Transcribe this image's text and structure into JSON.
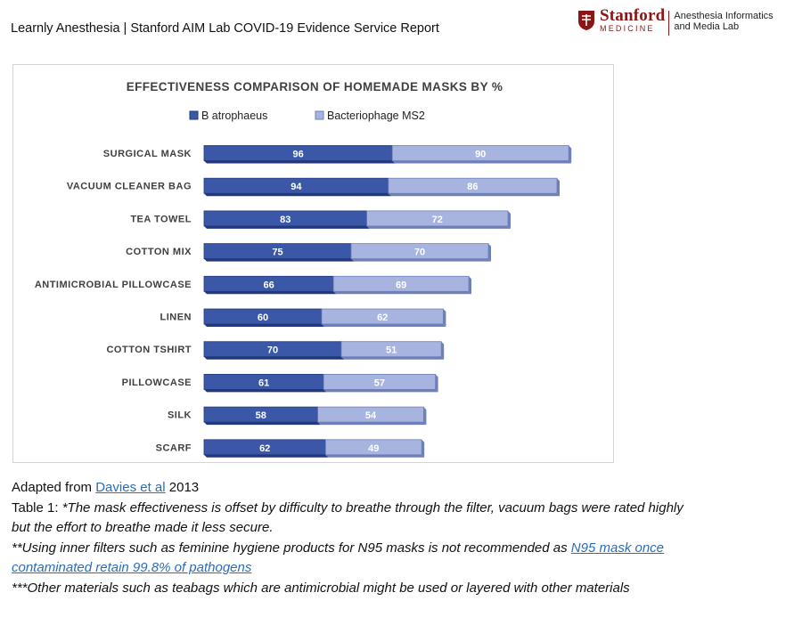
{
  "header": {
    "title": "Learnly  Anesthesia | Stanford AIM Lab COVID-19 Evidence Service Report"
  },
  "logo": {
    "wordmark": "Stanford",
    "subword": "MEDICINE",
    "lab_line1": "Anesthesia Informatics",
    "lab_line2": "and Media Lab"
  },
  "colors": {
    "series1": "#3b58a8",
    "series1_dark": "#23387a",
    "series2": "#a7b4e0",
    "series2_dark": "#6f7fb8",
    "logo": "#8c1515",
    "link": "#2a6ebb"
  },
  "chart_data": {
    "type": "bar",
    "orientation": "horizontal",
    "stacked": true,
    "title": "EFFECTIVENESS COMPARISON OF HOMEMADE MASKS BY %",
    "legend_position": "top",
    "categories": [
      "SURGICAL MASK",
      "VACUUM CLEANER BAG",
      "TEA TOWEL",
      "COTTON MIX",
      "ANTIMICROBIAL  PILLOWCASE",
      "LINEN",
      "COTTON TSHIRT",
      "PILLOWCASE",
      "SILK",
      "SCARF"
    ],
    "series": [
      {
        "name": "B atrophaeus",
        "values": [
          96,
          94,
          83,
          75,
          66,
          60,
          70,
          61,
          58,
          62
        ]
      },
      {
        "name": "Bacteriophage MS2",
        "values": [
          90,
          86,
          72,
          70,
          69,
          62,
          51,
          57,
          54,
          49
        ]
      }
    ],
    "data_labels": true,
    "grid": false
  },
  "caption": {
    "source_prefix": "Adapted from ",
    "source_link": "Davies et al",
    "source_suffix": " 2013",
    "note1_plain": "Table 1: ",
    "note1_line1": "*The mask effectiveness is offset by difficulty to breathe through the filter, vacuum bags were rated highly",
    "note1_line2": "but the effort to breathe made it less secure.",
    "note2_text": "**Using inner filters such as feminine hygiene products for N95 masks is not recommended as ",
    "note2_link_line1": "N95 mask once",
    "note2_link_line2": "contaminated retain 99.8% of pathogens",
    "note3": "***Other materials such as teabags which are antimicrobial might be used or layered with other materials"
  }
}
